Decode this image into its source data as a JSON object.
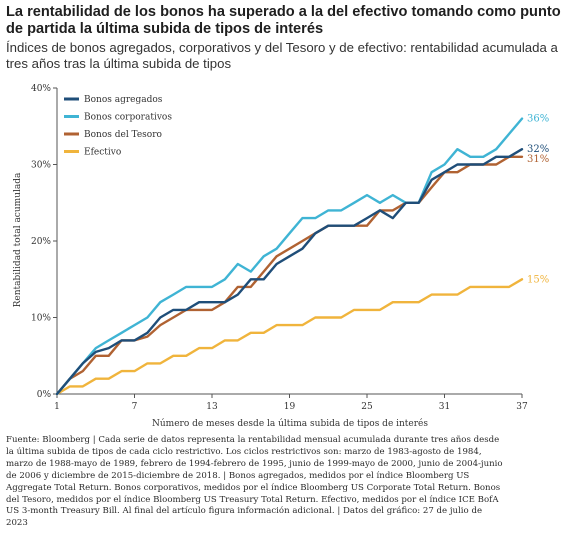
{
  "header": {
    "title": "La rentabilidad de los bonos ha superado a la del efectivo tomando como punto de partida la última subida de tipos de interés",
    "subtitle": "Índices de bonos agregados, corporativos y del Tesoro y de efectivo: rentabilidad acumulada a tres años tras la última subida de tipos"
  },
  "chart_data": {
    "type": "line",
    "xlabel": "Número de meses desde la última subida de tipos de interés",
    "ylabel": "Rentabilidad total acumulada",
    "x": [
      1,
      2,
      3,
      4,
      5,
      6,
      7,
      8,
      9,
      10,
      11,
      12,
      13,
      14,
      15,
      16,
      17,
      18,
      19,
      20,
      21,
      22,
      23,
      24,
      25,
      26,
      27,
      28,
      29,
      30,
      31,
      32,
      33,
      34,
      35,
      36,
      37
    ],
    "xticks": [
      1,
      7,
      13,
      19,
      25,
      31,
      37
    ],
    "xtick_labels": [
      "1",
      "7",
      "13",
      "19",
      "25",
      "31",
      "37"
    ],
    "yticks": [
      0,
      10,
      20,
      30,
      40
    ],
    "ytick_labels": [
      "0%",
      "10%",
      "20%",
      "30%",
      "40%"
    ],
    "xlim": [
      1,
      37
    ],
    "ylim": [
      0,
      40
    ],
    "grid": false,
    "legend_position": "top-left",
    "series": [
      {
        "name": "Bonos agregados",
        "color": "#1f4e79",
        "end_label": "32%",
        "values": [
          0,
          2,
          4,
          5.5,
          6,
          7,
          7,
          8,
          10,
          11,
          11,
          12,
          12,
          12,
          13,
          15,
          15,
          17,
          18,
          19,
          21,
          22,
          22,
          22,
          23,
          24,
          23,
          25,
          25,
          28,
          29,
          30,
          30,
          30,
          31,
          31,
          32
        ]
      },
      {
        "name": "Bonos corporativos",
        "color": "#3fb4d4",
        "end_label": "36%",
        "values": [
          0,
          2,
          4,
          6,
          7,
          8,
          9,
          10,
          12,
          13,
          14,
          14,
          14,
          15,
          17,
          16,
          18,
          19,
          21,
          23,
          23,
          24,
          24,
          25,
          26,
          25,
          26,
          25,
          25,
          29,
          30,
          32,
          31,
          31,
          32,
          34,
          36
        ]
      },
      {
        "name": "Bonos del Tesoro",
        "color": "#b06232",
        "end_label": "31%",
        "values": [
          0,
          2,
          3,
          5,
          5,
          7,
          7,
          7.5,
          9,
          10,
          11,
          11,
          11,
          12,
          14,
          14,
          16,
          18,
          19,
          20,
          21,
          22,
          22,
          22,
          22,
          24,
          24,
          25,
          25,
          27,
          29,
          29,
          30,
          30,
          30,
          31,
          31
        ]
      },
      {
        "name": "Efectivo",
        "color": "#f0b43c",
        "end_label": "15%",
        "values": [
          0,
          1,
          1,
          2,
          2,
          3,
          3,
          4,
          4,
          5,
          5,
          6,
          6,
          7,
          7,
          8,
          8,
          9,
          9,
          9,
          10,
          10,
          10,
          11,
          11,
          11,
          12,
          12,
          12,
          13,
          13,
          13,
          14,
          14,
          14,
          14,
          15
        ]
      }
    ]
  },
  "footnote": {
    "text": "Fuente: Bloomberg | Cada serie de datos representa la rentabilidad mensual acumulada durante tres años desde la última subida de tipos de cada ciclo restrictivo. Los ciclos restrictivos son: marzo de 1983-agosto de 1984, marzo de 1988-mayo de 1989, febrero de 1994-febrero de 1995, junio de 1999-mayo de 2000, junio de 2004-junio de 2006 y diciembre de 2015-diciembre de 2018. | Bonos agregados, medidos por el índice Bloomberg US Aggregate Total Return. Bonos corporativos, medidos por el índice Bloomberg US Corporate Total Return. Bonos del Tesoro, medidos por el índice Bloomberg US Treasury Total Return. Efectivo, medidos por el índice ICE BofA US 3-month Treasury Bill. Al final del artículo figura información adicional. | Datos del gráfico: 27 de julio de 2023"
  }
}
